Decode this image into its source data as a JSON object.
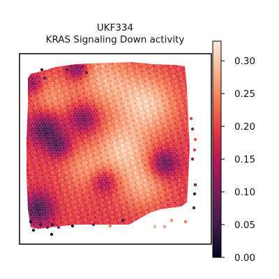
{
  "chart_data": {
    "type": "heatmap",
    "title_line1": "UKF334",
    "title_line2": "KRAS Signaling Down activity",
    "xlabel": "",
    "ylabel": "",
    "colorbar": {
      "range": [
        0.0,
        0.33
      ],
      "ticks": [
        "0.00",
        "0.05",
        "0.10",
        "0.15",
        "0.20",
        "0.25",
        "0.30"
      ],
      "colormap": "rocket",
      "colors": [
        "#03051a",
        "#3b1a4a",
        "#701f57",
        "#ad1759",
        "#e13342",
        "#f37651",
        "#f6b48f",
        "#faebdd"
      ]
    },
    "grid": false,
    "legend": "none"
  }
}
